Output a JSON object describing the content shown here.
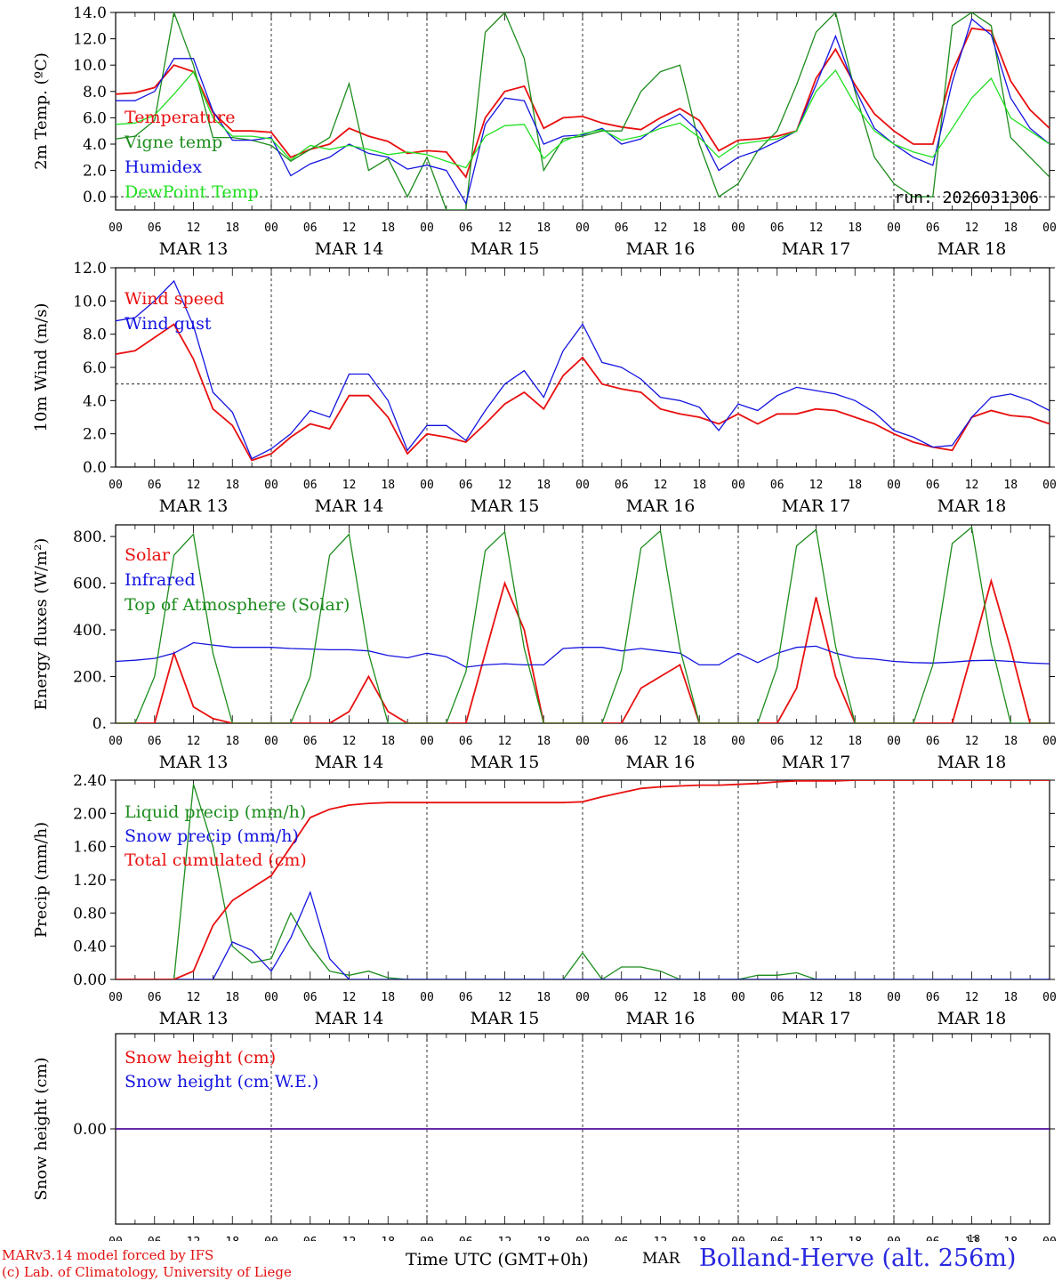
{
  "colors": {
    "red": "#e81010",
    "green": "#1c8c1c",
    "blue": "#1414e0",
    "lightgreen": "#20e020",
    "axis": "#000000"
  },
  "x_axis": {
    "hour_labels": [
      "00",
      "06",
      "12",
      "18",
      "00",
      "06",
      "12",
      "18",
      "00",
      "06",
      "12",
      "18",
      "00",
      "06",
      "12",
      "18",
      "00",
      "06",
      "12",
      "18",
      "00",
      "06",
      "12",
      "18",
      "00"
    ],
    "day_labels": [
      "MAR 13",
      "MAR 14",
      "MAR 15",
      "MAR 16",
      "MAR 17",
      "MAR 18"
    ]
  },
  "footer": {
    "model": "MARv3.14 model forced by IFS",
    "lab": "(c) Lab. of Climatology, University of Liege",
    "time_label": "Time UTC (GMT+0h)",
    "month": "MAR",
    "day_small": "18",
    "station": "Bolland-Herve (alt. 256m)"
  },
  "chart_data": [
    {
      "type": "line",
      "ylabel": "2m Temp. (ºC)",
      "ylim": [
        -1.0,
        14.0
      ],
      "yticks": [
        "0.0",
        "2.0",
        "4.0",
        "6.0",
        "8.0",
        "10.0",
        "12.0",
        "14.0"
      ],
      "ytick_values": [
        0,
        2,
        4,
        6,
        8,
        10,
        12,
        14
      ],
      "ref_line": 0,
      "annotation": "run: 2026031306",
      "x_hours": [
        0,
        3,
        6,
        9,
        12,
        15,
        18,
        21,
        24,
        27,
        30,
        33,
        36,
        39,
        42,
        45,
        48,
        51,
        54,
        57,
        60,
        63,
        66,
        69,
        72,
        75,
        78,
        81,
        84,
        87,
        90,
        93,
        96,
        99,
        102,
        105,
        108,
        111,
        114,
        117,
        120,
        123,
        126,
        129,
        132,
        135,
        138,
        141,
        144
      ],
      "series": [
        {
          "name": "Temperature",
          "color": "red",
          "values": [
            7.8,
            7.9,
            8.3,
            10.0,
            9.5,
            6.4,
            5.0,
            5.0,
            4.9,
            3.0,
            3.6,
            4.0,
            5.2,
            4.6,
            4.2,
            3.3,
            3.5,
            3.4,
            1.5,
            6.0,
            8.0,
            8.4,
            5.2,
            6.0,
            6.1,
            5.6,
            5.3,
            5.1,
            6.0,
            6.7,
            5.8,
            3.5,
            4.3,
            4.4,
            4.6,
            5.0,
            9.0,
            11.2,
            8.5,
            6.3,
            5.0,
            4.0,
            4.0,
            9.5,
            12.8,
            12.6,
            8.8,
            6.6,
            5.2
          ]
        },
        {
          "name": "Vigne temp",
          "color": "green",
          "values": [
            4.4,
            4.6,
            5.8,
            14.0,
            10.0,
            4.5,
            4.5,
            4.3,
            3.9,
            2.7,
            3.6,
            4.5,
            8.6,
            2.0,
            2.9,
            0.0,
            3.0,
            -1.0,
            -1.0,
            12.5,
            14.0,
            10.5,
            2.0,
            4.4,
            4.6,
            5.0,
            5.0,
            8.0,
            9.5,
            10.0,
            4.0,
            0.0,
            1.0,
            3.5,
            5.0,
            8.5,
            12.5,
            14.0,
            8.0,
            3.0,
            1.0,
            0.0,
            0.0,
            13.0,
            14.0,
            13.0,
            4.5,
            3.0,
            1.5
          ]
        },
        {
          "name": "Humidex",
          "color": "blue",
          "values": [
            7.3,
            7.3,
            8.0,
            10.5,
            10.5,
            6.5,
            4.3,
            4.3,
            4.5,
            1.6,
            2.5,
            3.0,
            4.0,
            3.3,
            3.0,
            2.1,
            2.4,
            2.0,
            -0.5,
            5.5,
            7.5,
            7.3,
            4.0,
            4.6,
            4.7,
            5.2,
            4.0,
            4.4,
            5.5,
            6.3,
            4.9,
            2.0,
            3.0,
            3.5,
            4.2,
            5.0,
            8.5,
            12.2,
            8.2,
            5.2,
            4.0,
            3.0,
            2.4,
            8.7,
            13.5,
            12.3,
            7.5,
            5.2,
            4.0
          ]
        },
        {
          "name": "DewPoint Temp",
          "color": "lightgreen",
          "values": [
            5.5,
            5.6,
            6.2,
            7.8,
            9.5,
            6.0,
            4.6,
            4.6,
            4.4,
            2.8,
            3.9,
            3.6,
            3.9,
            3.6,
            3.2,
            3.4,
            3.2,
            2.7,
            2.2,
            4.6,
            5.4,
            5.5,
            2.9,
            4.2,
            4.8,
            5.1,
            4.3,
            4.6,
            5.2,
            5.6,
            4.5,
            3.0,
            4.0,
            4.2,
            4.4,
            5.0,
            8.0,
            9.6,
            7.0,
            5.0,
            4.0,
            3.4,
            3.0,
            5.2,
            7.5,
            9.0,
            6.0,
            5.0,
            4.0
          ]
        }
      ]
    },
    {
      "type": "line",
      "ylabel": "10m Wind (m/s)",
      "ylim": [
        0,
        12
      ],
      "yticks": [
        "0.0",
        "2.0",
        "4.0",
        "6.0",
        "8.0",
        "10.0",
        "12.0"
      ],
      "ytick_values": [
        0,
        2,
        4,
        6,
        8,
        10,
        12
      ],
      "ref_line": 5,
      "x_hours": [
        0,
        3,
        6,
        9,
        12,
        15,
        18,
        21,
        24,
        27,
        30,
        33,
        36,
        39,
        42,
        45,
        48,
        51,
        54,
        57,
        60,
        63,
        66,
        69,
        72,
        75,
        78,
        81,
        84,
        87,
        90,
        93,
        96,
        99,
        102,
        105,
        108,
        111,
        114,
        117,
        120,
        123,
        126,
        129,
        132,
        135,
        138,
        141,
        144
      ],
      "series": [
        {
          "name": "Wind speed",
          "color": "red",
          "values": [
            6.8,
            7.0,
            7.8,
            8.6,
            6.5,
            3.5,
            2.5,
            0.4,
            0.8,
            1.8,
            2.6,
            2.3,
            4.3,
            4.3,
            3.0,
            0.8,
            2.0,
            1.8,
            1.5,
            2.6,
            3.8,
            4.5,
            3.5,
            5.5,
            6.6,
            5.0,
            4.7,
            4.5,
            3.5,
            3.2,
            3.0,
            2.6,
            3.2,
            2.6,
            3.2,
            3.2,
            3.5,
            3.4,
            3.0,
            2.6,
            2.0,
            1.5,
            1.2,
            1.0,
            3.0,
            3.4,
            3.1,
            3.0,
            2.6
          ]
        },
        {
          "name": "Wind gust",
          "color": "blue",
          "values": [
            8.8,
            9.0,
            10.0,
            11.2,
            8.5,
            4.5,
            3.3,
            0.5,
            1.1,
            2.0,
            3.4,
            3.0,
            5.6,
            5.6,
            4.0,
            1.0,
            2.5,
            2.5,
            1.6,
            3.4,
            5.0,
            5.8,
            4.2,
            7.0,
            8.6,
            6.3,
            6.0,
            5.3,
            4.2,
            4.0,
            3.6,
            2.2,
            3.8,
            3.4,
            4.3,
            4.8,
            4.6,
            4.4,
            4.0,
            3.3,
            2.2,
            1.8,
            1.2,
            1.3,
            3.0,
            4.2,
            4.4,
            4.0,
            3.4
          ]
        }
      ]
    },
    {
      "type": "line",
      "ylabel": "Energy fluxes (W/m²)",
      "ylim": [
        0,
        850
      ],
      "yticks": [
        "0.",
        "200.",
        "400.",
        "600.",
        "800."
      ],
      "ytick_values": [
        0,
        200,
        400,
        600,
        800
      ],
      "x_hours": [
        0,
        3,
        6,
        9,
        12,
        15,
        18,
        21,
        24,
        27,
        30,
        33,
        36,
        39,
        42,
        45,
        48,
        51,
        54,
        57,
        60,
        63,
        66,
        69,
        72,
        75,
        78,
        81,
        84,
        87,
        90,
        93,
        96,
        99,
        102,
        105,
        108,
        111,
        114,
        117,
        120,
        123,
        126,
        129,
        132,
        135,
        138,
        141,
        144
      ],
      "series": [
        {
          "name": "Solar",
          "color": "red",
          "values": [
            0,
            0,
            0,
            300,
            70,
            20,
            0,
            0,
            0,
            0,
            0,
            0,
            50,
            200,
            50,
            0,
            0,
            0,
            0,
            300,
            600,
            400,
            0,
            0,
            0,
            0,
            0,
            150,
            200,
            250,
            0,
            0,
            0,
            0,
            0,
            150,
            540,
            200,
            0,
            0,
            0,
            0,
            0,
            0,
            300,
            610,
            320,
            0,
            0
          ]
        },
        {
          "name": "Infrared",
          "color": "blue",
          "values": [
            265,
            270,
            278,
            300,
            345,
            335,
            325,
            325,
            325,
            320,
            318,
            315,
            315,
            310,
            290,
            280,
            300,
            285,
            240,
            250,
            255,
            250,
            250,
            320,
            325,
            325,
            310,
            320,
            310,
            300,
            250,
            250,
            300,
            260,
            300,
            325,
            330,
            300,
            280,
            275,
            265,
            260,
            258,
            262,
            268,
            270,
            265,
            258,
            255
          ]
        },
        {
          "name": "Top of Atmosphere (Solar)",
          "color": "green",
          "values": [
            0,
            0,
            200,
            720,
            810,
            300,
            0,
            0,
            0,
            0,
            200,
            720,
            810,
            300,
            0,
            0,
            0,
            0,
            220,
            740,
            820,
            320,
            0,
            0,
            0,
            0,
            230,
            750,
            825,
            320,
            0,
            0,
            0,
            0,
            240,
            760,
            830,
            330,
            0,
            0,
            0,
            0,
            250,
            770,
            840,
            340,
            0,
            0,
            0
          ]
        }
      ]
    },
    {
      "type": "line",
      "ylabel": "Precip (mm/h)",
      "ylim": [
        0,
        2.4
      ],
      "yticks": [
        "0.00",
        "0.40",
        "0.80",
        "1.20",
        "1.60",
        "2.00",
        "2.40"
      ],
      "ytick_values": [
        0,
        0.4,
        0.8,
        1.2,
        1.6,
        2.0,
        2.4
      ],
      "x_hours": [
        0,
        3,
        6,
        9,
        12,
        15,
        18,
        21,
        24,
        27,
        30,
        33,
        36,
        39,
        42,
        45,
        48,
        51,
        54,
        57,
        60,
        63,
        66,
        69,
        72,
        75,
        78,
        81,
        84,
        87,
        90,
        93,
        96,
        99,
        102,
        105,
        108,
        111,
        114,
        117,
        120,
        123,
        126,
        129,
        132,
        135,
        138,
        141,
        144
      ],
      "series": [
        {
          "name": "Liquid precip (mm/h)",
          "color": "green",
          "values": [
            0,
            0,
            0,
            0,
            2.35,
            1.6,
            0.4,
            0.2,
            0.25,
            0.8,
            0.4,
            0.1,
            0.05,
            0.1,
            0.02,
            0,
            0,
            0,
            0,
            0,
            0,
            0,
            0,
            0,
            0.32,
            0,
            0.15,
            0.15,
            0.1,
            0,
            0,
            0,
            0,
            0.05,
            0.05,
            0.08,
            0,
            0,
            0,
            0,
            0,
            0,
            0,
            0,
            0,
            0,
            0,
            0,
            0
          ]
        },
        {
          "name": "Snow precip (mm/h)",
          "color": "blue",
          "values": [
            0,
            0,
            0,
            0,
            0,
            0,
            0.45,
            0.35,
            0.1,
            0.5,
            1.05,
            0.25,
            0,
            0,
            0,
            0,
            0,
            0,
            0,
            0,
            0,
            0,
            0,
            0,
            0,
            0,
            0,
            0,
            0,
            0,
            0,
            0,
            0,
            0,
            0,
            0,
            0,
            0,
            0,
            0,
            0,
            0,
            0,
            0,
            0,
            0,
            0,
            0,
            0
          ]
        },
        {
          "name": "Total cumulated (cm)",
          "color": "red",
          "values": [
            0,
            0,
            0,
            0,
            0.1,
            0.65,
            0.95,
            1.1,
            1.25,
            1.6,
            1.95,
            2.05,
            2.1,
            2.12,
            2.13,
            2.13,
            2.13,
            2.13,
            2.13,
            2.13,
            2.13,
            2.13,
            2.13,
            2.13,
            2.14,
            2.2,
            2.25,
            2.3,
            2.32,
            2.33,
            2.34,
            2.34,
            2.35,
            2.36,
            2.38,
            2.39,
            2.39,
            2.39,
            2.4,
            2.4,
            2.4,
            2.4,
            2.4,
            2.4,
            2.4,
            2.4,
            2.4,
            2.4,
            2.4
          ]
        }
      ]
    },
    {
      "type": "line",
      "ylabel": "Snow height (cm)",
      "ylim": [
        -1,
        1
      ],
      "yticks": [
        "0.00"
      ],
      "ytick_values": [
        0
      ],
      "x_hours": [
        0,
        144
      ],
      "series": [
        {
          "name": "Snow height (cm)",
          "color": "red",
          "values": [
            0,
            0
          ]
        },
        {
          "name": "Snow height (cm W.E.)",
          "color": "blue",
          "values": [
            0,
            0
          ]
        }
      ]
    }
  ]
}
